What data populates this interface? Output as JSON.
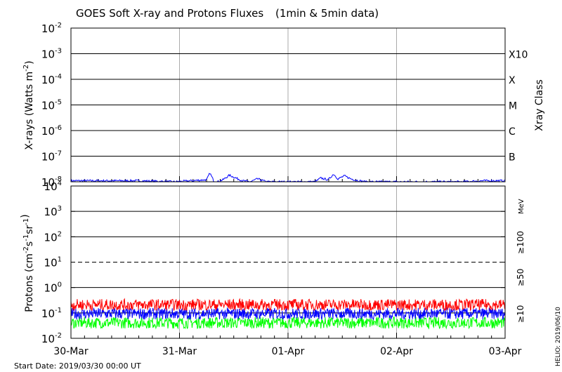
{
  "chart_data": [
    {
      "type": "line",
      "title": "GOES Soft X-ray and Protons Fluxes",
      "subtitle": "(1min & 5min data)",
      "ylabel": "X-rays (Watts m",
      "ylabel_sup": "-2",
      "ylabel_close": ")",
      "yscale": "log",
      "ylim": [
        1e-08,
        0.01
      ],
      "y_ticks": [
        {
          "value": 0.01,
          "mantissa": "10",
          "exp": "-2"
        },
        {
          "value": 0.001,
          "mantissa": "10",
          "exp": "-3"
        },
        {
          "value": 0.0001,
          "mantissa": "10",
          "exp": "-4"
        },
        {
          "value": 1e-05,
          "mantissa": "10",
          "exp": "-5"
        },
        {
          "value": 1e-06,
          "mantissa": "10",
          "exp": "-6"
        },
        {
          "value": 1e-07,
          "mantissa": "10",
          "exp": "-7"
        },
        {
          "value": 1e-08,
          "mantissa": "10",
          "exp": "-8"
        }
      ],
      "right_axis_label": "Xray Class",
      "class_labels": [
        {
          "label": "X10",
          "value": 0.001
        },
        {
          "label": "X",
          "value": 0.0001
        },
        {
          "label": "M",
          "value": 1e-05
        },
        {
          "label": "C",
          "value": 1e-06
        },
        {
          "label": "B",
          "value": 1e-07
        }
      ],
      "series": [
        {
          "color": "#0000ff",
          "x_days": [
            0,
            0.3,
            0.6,
            0.95,
            1.25,
            1.28,
            1.32,
            1.35,
            1.4,
            1.46,
            1.52,
            1.58,
            1.65,
            1.72,
            1.8,
            1.9,
            2.0,
            2.1,
            2.25,
            2.3,
            2.37,
            2.42,
            2.46,
            2.52,
            2.58,
            2.65,
            2.72,
            2.8,
            2.9,
            3.0,
            3.2,
            3.4,
            3.6,
            3.8,
            4.0
          ],
          "y": [
            1.1e-08,
            1.1e-08,
            1.1e-08,
            1e-08,
            1.2e-08,
            2.2e-08,
            1e-08,
            1e-08,
            1.2e-08,
            1.8e-08,
            1.4e-08,
            1.1e-08,
            1e-08,
            1.3e-08,
            1e-08,
            1e-08,
            1e-08,
            1e-08,
            1e-08,
            1.4e-08,
            1.2e-08,
            2e-08,
            1.3e-08,
            1.7e-08,
            1.3e-08,
            1.1e-08,
            1e-08,
            1e-08,
            1e-08,
            1e-08,
            1e-08,
            1e-08,
            1e-08,
            1.1e-08,
            1.1e-08
          ]
        }
      ]
    },
    {
      "type": "line",
      "ylabel": "Protons (cm",
      "ylabel_parts": [
        "-2",
        "s",
        "-1",
        "sr",
        "-1"
      ],
      "yscale": "log",
      "ylim": [
        0.01,
        10000
      ],
      "y_ticks": [
        {
          "value": 10000,
          "mantissa": "10",
          "exp": "4"
        },
        {
          "value": 1000,
          "mantissa": "10",
          "exp": "3"
        },
        {
          "value": 100,
          "mantissa": "10",
          "exp": "2"
        },
        {
          "value": 10,
          "mantissa": "10",
          "exp": "1"
        },
        {
          "value": 1,
          "mantissa": "10",
          "exp": "0"
        },
        {
          "value": 0.1,
          "mantissa": "10",
          "exp": "-1"
        },
        {
          "value": 0.01,
          "mantissa": "10",
          "exp": "-2"
        }
      ],
      "threshold": 10,
      "unit_label": "MeV",
      "series": [
        {
          "name": "≥10",
          "color": "#ff0000",
          "typical": 0.18
        },
        {
          "name": "≥50",
          "color": "#0000ff",
          "typical": 0.08
        },
        {
          "name": "≥100",
          "color": "#00ff00",
          "typical": 0.035
        }
      ]
    }
  ],
  "x_axis": {
    "start": "2019-03-30",
    "end": "2019-04-03",
    "ticks": [
      "30-Mar",
      "31-Mar",
      "01-Apr",
      "02-Apr",
      "03-Apr"
    ]
  },
  "footer": {
    "start_date": "Start Date: 2019/03/30 00:00 UT",
    "credit": "HELIO: 2019/06/10"
  },
  "colors": {
    "grid_vertical": "#aaaaaa",
    "grid_horizontal": "#000000"
  }
}
